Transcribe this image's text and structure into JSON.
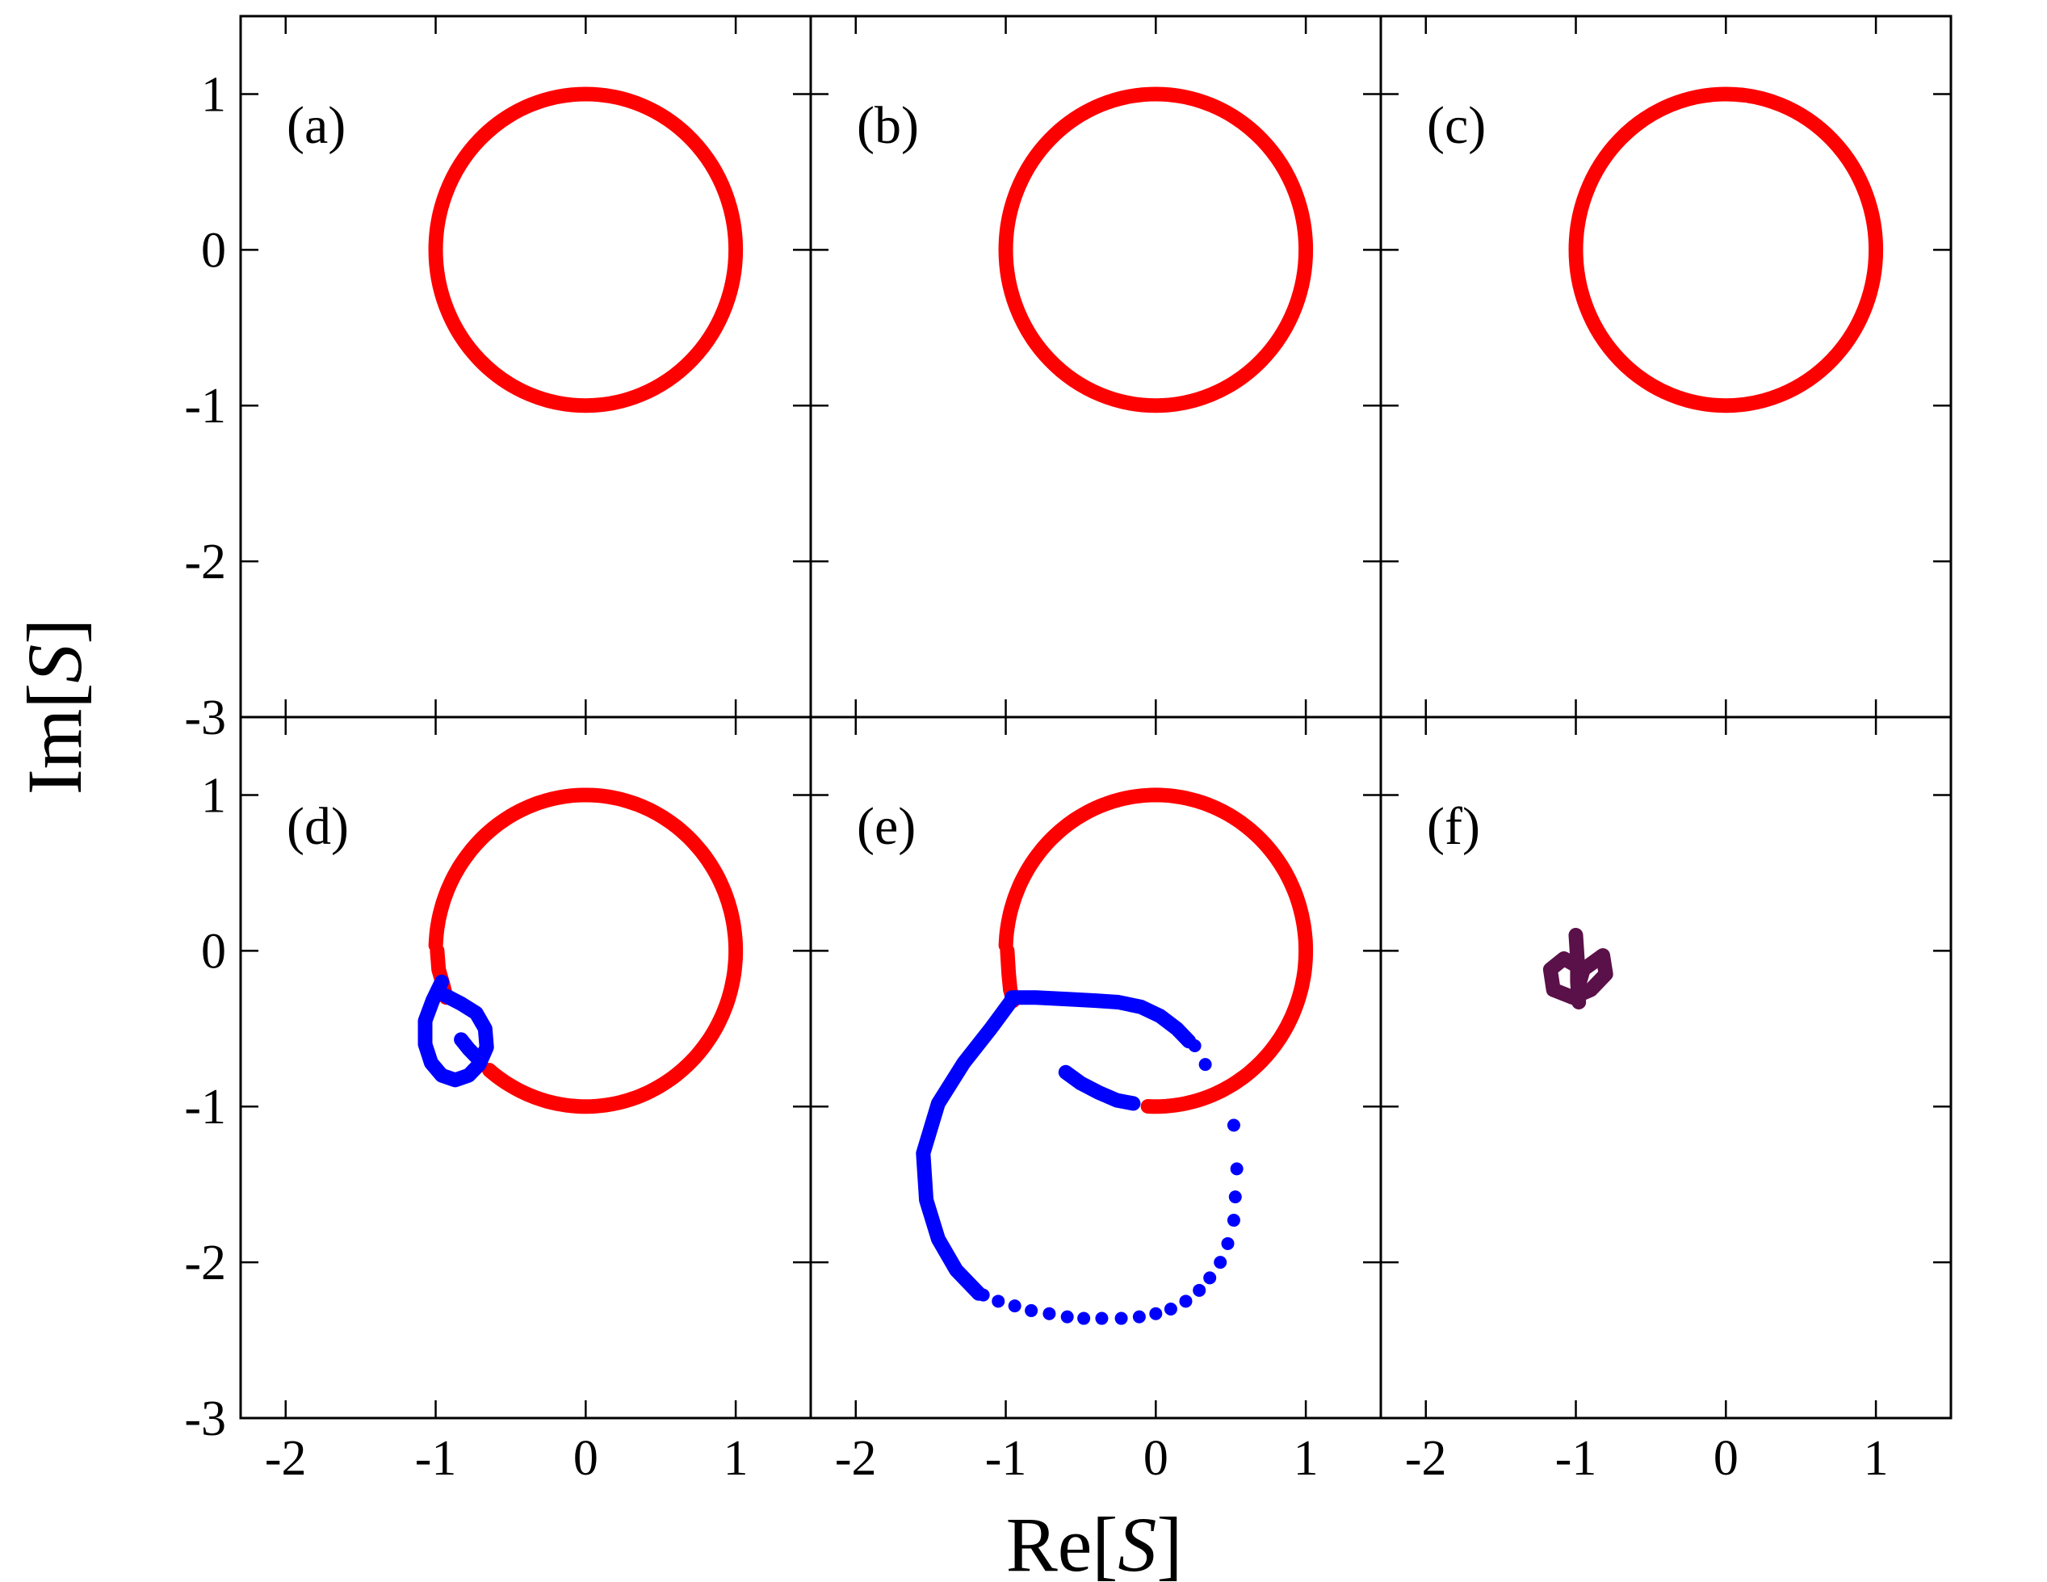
{
  "figure": {
    "xlabel": {
      "prefix": "Re[",
      "symbol": "S",
      "suffix": "]"
    },
    "ylabel": {
      "prefix": "Im[",
      "symbol": "S",
      "suffix": "]"
    },
    "xlim": [
      -2.3,
      1.5
    ],
    "ylim": [
      -3,
      1.5
    ],
    "xticks": [
      -2,
      -1,
      0,
      1
    ],
    "xtick_labels": [
      "-2",
      "-1",
      "0",
      "1"
    ],
    "yticks": [
      -3,
      -2,
      -1,
      0,
      1
    ],
    "ytick_labels": [
      "-3",
      "-2",
      "-1",
      "0",
      "1"
    ],
    "colors": {
      "red": "#ff0000",
      "blue": "#0000ff",
      "purple": "#5a1048"
    }
  },
  "chart_data": [
    {
      "panel": "(a)",
      "type": "scatter",
      "series": [
        {
          "color": "#ff0000",
          "curve": "circle",
          "center": [
            0,
            0
          ],
          "radius": 1
        }
      ]
    },
    {
      "panel": "(b)",
      "type": "scatter",
      "series": [
        {
          "color": "#ff0000",
          "curve": "circle",
          "center": [
            0,
            0
          ],
          "radius": 1
        }
      ]
    },
    {
      "panel": "(c)",
      "type": "scatter",
      "series": [
        {
          "color": "#ff0000",
          "curve": "circle",
          "center": [
            0,
            0
          ],
          "radius": 1
        }
      ]
    },
    {
      "panel": "(d)",
      "type": "scatter",
      "series": [
        {
          "color": "#ff0000",
          "curve": "arc",
          "center": [
            0,
            0
          ],
          "radius": 1,
          "theta_deg": [
            -130,
            178
          ]
        },
        {
          "color": "#ff0000",
          "curve": "polyline",
          "points": [
            [
              -0.99,
              0.0
            ],
            [
              -0.98,
              -0.12
            ],
            [
              -0.95,
              -0.22
            ],
            [
              -0.93,
              -0.3
            ]
          ]
        },
        {
          "color": "#0000ff",
          "curve": "polyline",
          "points": [
            [
              -0.96,
              -0.2
            ],
            [
              -1.02,
              -0.32
            ],
            [
              -1.07,
              -0.45
            ],
            [
              -1.07,
              -0.6
            ],
            [
              -1.03,
              -0.72
            ],
            [
              -0.96,
              -0.8
            ],
            [
              -0.87,
              -0.83
            ],
            [
              -0.78,
              -0.8
            ],
            [
              -0.71,
              -0.73
            ],
            [
              -0.66,
              -0.62
            ],
            [
              -0.67,
              -0.5
            ],
            [
              -0.73,
              -0.4
            ],
            [
              -0.83,
              -0.34
            ],
            [
              -0.93,
              -0.29
            ]
          ]
        },
        {
          "color": "#0000ff",
          "curve": "polyline",
          "points": [
            [
              -0.83,
              -0.57
            ],
            [
              -0.78,
              -0.63
            ],
            [
              -0.73,
              -0.68
            ]
          ]
        }
      ]
    },
    {
      "panel": "(e)",
      "type": "scatter",
      "series": [
        {
          "color": "#ff0000",
          "curve": "arc",
          "center": [
            0,
            0
          ],
          "radius": 1,
          "theta_deg": [
            -93,
            178
          ]
        },
        {
          "color": "#ff0000",
          "curve": "polyline",
          "points": [
            [
              -0.99,
              0.0
            ],
            [
              -0.98,
              -0.15
            ],
            [
              -0.97,
              -0.25
            ],
            [
              -0.95,
              -0.32
            ]
          ]
        },
        {
          "color": "#0000ff",
          "curve": "polyline",
          "points": [
            [
              -0.96,
              -0.3
            ],
            [
              -0.8,
              -0.3
            ],
            [
              -0.6,
              -0.31
            ],
            [
              -0.4,
              -0.32
            ],
            [
              -0.25,
              -0.33
            ],
            [
              -0.1,
              -0.36
            ],
            [
              0.03,
              -0.42
            ],
            [
              0.14,
              -0.5
            ],
            [
              0.22,
              -0.58
            ]
          ]
        },
        {
          "color": "#0000ff",
          "curve": "polyline",
          "points": [
            [
              -0.6,
              -0.78
            ],
            [
              -0.5,
              -0.85
            ],
            [
              -0.38,
              -0.91
            ],
            [
              -0.26,
              -0.96
            ],
            [
              -0.15,
              -0.98
            ]
          ]
        },
        {
          "color": "#0000ff",
          "curve": "polyline",
          "points": [
            [
              -0.97,
              -0.33
            ],
            [
              -1.1,
              -0.5
            ],
            [
              -1.28,
              -0.72
            ],
            [
              -1.45,
              -0.98
            ],
            [
              -1.55,
              -1.3
            ],
            [
              -1.53,
              -1.6
            ],
            [
              -1.45,
              -1.85
            ],
            [
              -1.33,
              -2.05
            ],
            [
              -1.18,
              -2.2
            ]
          ]
        },
        {
          "color": "#0000ff",
          "curve": "dots",
          "points": [
            [
              0.26,
              -0.61
            ],
            [
              0.33,
              -0.73
            ],
            [
              0.52,
              -1.12
            ],
            [
              0.54,
              -1.4
            ],
            [
              0.53,
              -1.58
            ],
            [
              0.52,
              -1.73
            ],
            [
              0.48,
              -1.88
            ],
            [
              0.43,
              -2.0
            ],
            [
              0.36,
              -2.1
            ],
            [
              0.29,
              -2.18
            ],
            [
              0.2,
              -2.25
            ],
            [
              0.1,
              -2.3
            ],
            [
              0.0,
              -2.33
            ],
            [
              -0.11,
              -2.35
            ],
            [
              -0.23,
              -2.36
            ],
            [
              -0.36,
              -2.36
            ],
            [
              -0.48,
              -2.36
            ],
            [
              -0.59,
              -2.35
            ],
            [
              -0.71,
              -2.33
            ],
            [
              -0.83,
              -2.31
            ],
            [
              -0.94,
              -2.28
            ],
            [
              -1.05,
              -2.25
            ],
            [
              -1.15,
              -2.21
            ]
          ]
        }
      ]
    },
    {
      "panel": "(f)",
      "type": "scatter",
      "series": [
        {
          "color": "#5a1048",
          "curve": "polyline",
          "points": [
            [
              -0.95,
              -0.12
            ],
            [
              -0.82,
              -0.03
            ],
            [
              -0.8,
              -0.15
            ],
            [
              -0.9,
              -0.25
            ],
            [
              -1.02,
              -0.3
            ],
            [
              -1.15,
              -0.25
            ],
            [
              -1.17,
              -0.12
            ],
            [
              -1.08,
              -0.05
            ],
            [
              -0.95,
              -0.12
            ],
            [
              -0.98,
              -0.22
            ]
          ]
        },
        {
          "color": "#5a1048",
          "curve": "polyline",
          "points": [
            [
              -1.0,
              0.1
            ],
            [
              -0.99,
              -0.05
            ],
            [
              -0.99,
              -0.2
            ],
            [
              -0.98,
              -0.33
            ]
          ]
        }
      ]
    }
  ]
}
